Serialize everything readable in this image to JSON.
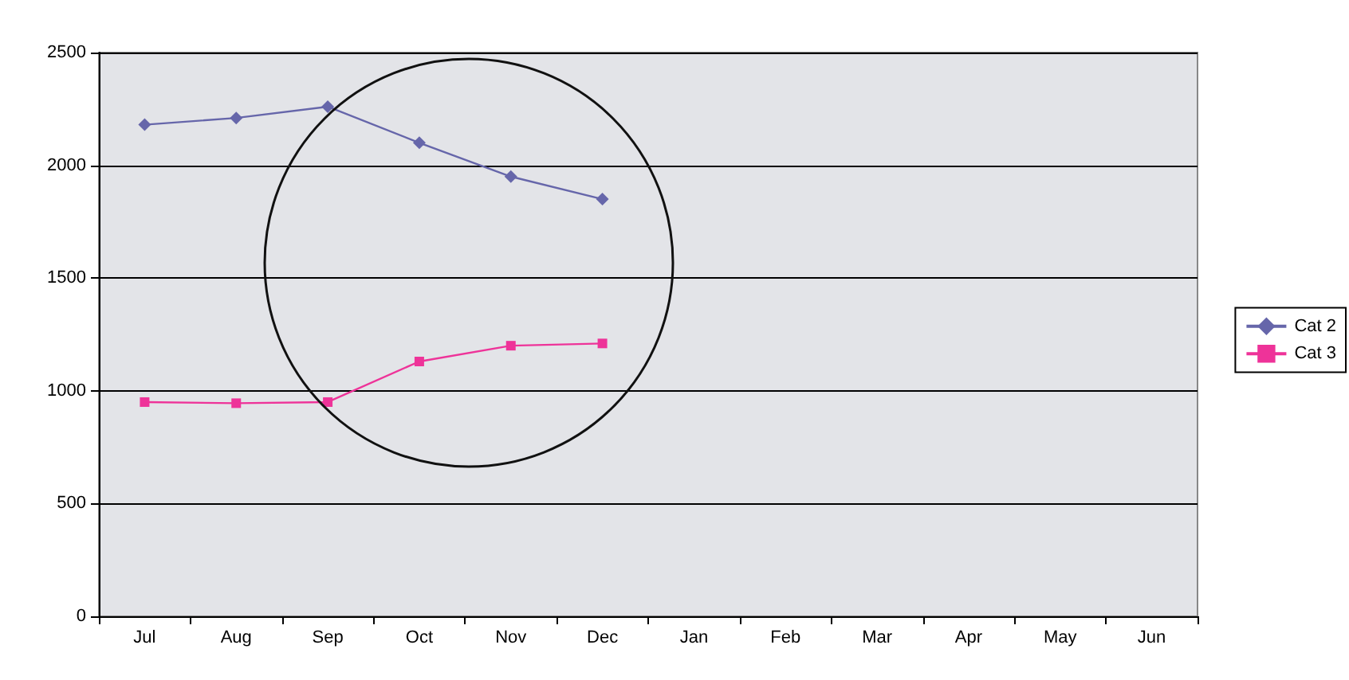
{
  "chart_data": {
    "type": "line",
    "categories": [
      "Jul",
      "Aug",
      "Sep",
      "Oct",
      "Nov",
      "Dec",
      "Jan",
      "Feb",
      "Mar",
      "Apr",
      "May",
      "Jun"
    ],
    "series": [
      {
        "name": "Cat 2",
        "color": "#6666aa",
        "marker": "diamond",
        "values": [
          2180,
          2210,
          2260,
          2100,
          1950,
          1850,
          null,
          null,
          null,
          null,
          null,
          null
        ]
      },
      {
        "name": "Cat 3",
        "color": "#ee3399",
        "marker": "square",
        "values": [
          950,
          945,
          950,
          1130,
          1200,
          1210,
          null,
          null,
          null,
          null,
          null,
          null
        ]
      }
    ],
    "ylim": [
      0,
      2500
    ],
    "yticks": [
      0,
      500,
      1000,
      1500,
      2000,
      2500
    ],
    "grid": "y",
    "legend": "right"
  }
}
